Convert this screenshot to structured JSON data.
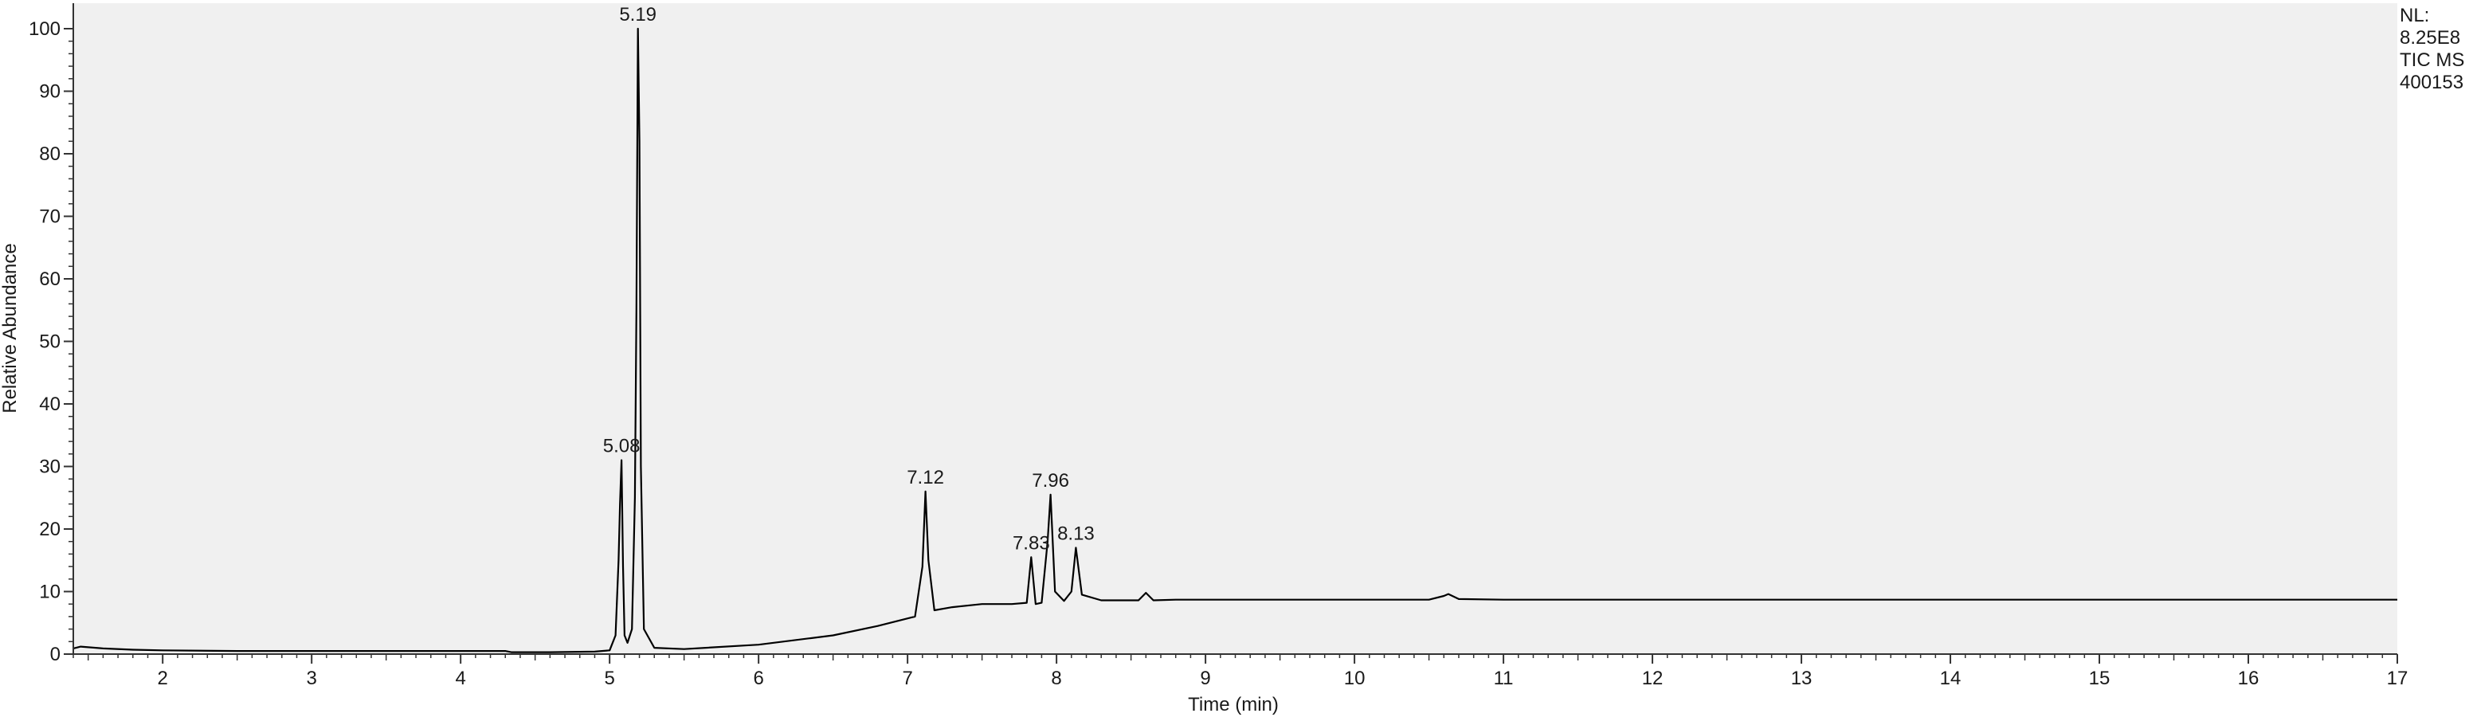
{
  "side_info": {
    "nl_label": "NL:",
    "nl_value": "8.25E8",
    "scan_filter": "TIC  MS",
    "sample_id": "400153"
  },
  "chart_data": {
    "type": "line",
    "title": "",
    "xlabel": "Time (min)",
    "ylabel": "Relative Abundance",
    "xlim": [
      1.4,
      17.0
    ],
    "ylim": [
      0,
      100
    ],
    "x_ticks": [
      2,
      3,
      4,
      5,
      6,
      7,
      8,
      9,
      10,
      11,
      12,
      13,
      14,
      15,
      16,
      17
    ],
    "y_ticks": [
      0,
      10,
      20,
      30,
      40,
      50,
      60,
      70,
      80,
      90,
      100
    ],
    "grid": false,
    "plot_background": "#f0f0f0",
    "line_color": "#000000",
    "series": [
      {
        "x": [
          1.4,
          1.45,
          1.6,
          1.8,
          2.0,
          2.5,
          3.0,
          3.5,
          4.0,
          4.3,
          4.34,
          4.6,
          4.9,
          5.0,
          5.04,
          5.06,
          5.07,
          5.08,
          5.09,
          5.1,
          5.12,
          5.15,
          5.17,
          5.18,
          5.19,
          5.2,
          5.21,
          5.23,
          5.3,
          5.5,
          6.0,
          6.5,
          6.8,
          7.05,
          7.1,
          7.12,
          7.14,
          7.18,
          7.3,
          7.5,
          7.7,
          7.8,
          7.83,
          7.86,
          7.9,
          7.94,
          7.96,
          7.99,
          8.05,
          8.1,
          8.13,
          8.17,
          8.3,
          8.55,
          8.6,
          8.65,
          8.8,
          9.5,
          10.5,
          10.6,
          10.63,
          10.7,
          11.0,
          12.0,
          13.0,
          14.0,
          15.0,
          16.0,
          17.0
        ],
        "y": [
          0.9,
          1.2,
          0.9,
          0.7,
          0.6,
          0.5,
          0.5,
          0.5,
          0.5,
          0.5,
          0.3,
          0.3,
          0.4,
          0.6,
          3.0,
          15.0,
          24.0,
          31.0,
          14.0,
          3.0,
          1.8,
          4.0,
          25.0,
          55.0,
          100.0,
          82.0,
          30.0,
          4.0,
          1.0,
          0.8,
          1.5,
          3.0,
          4.5,
          6.0,
          14.0,
          26.0,
          15.0,
          7.0,
          7.5,
          8.0,
          8.0,
          8.2,
          15.5,
          8.0,
          8.2,
          18.0,
          25.5,
          10.0,
          8.5,
          10.0,
          17.0,
          9.5,
          8.6,
          8.6,
          9.8,
          8.6,
          8.7,
          8.7,
          8.7,
          9.3,
          9.6,
          8.8,
          8.7,
          8.7,
          8.7,
          8.7,
          8.7,
          8.7,
          8.7
        ]
      }
    ],
    "peak_labels": [
      {
        "rt": 5.08,
        "label": "5.08",
        "value": 31
      },
      {
        "rt": 5.19,
        "label": "5.19",
        "value": 100
      },
      {
        "rt": 7.12,
        "label": "7.12",
        "value": 26
      },
      {
        "rt": 7.83,
        "label": "7.83",
        "value": 15.5
      },
      {
        "rt": 7.96,
        "label": "7.96",
        "value": 25.5
      },
      {
        "rt": 8.13,
        "label": "8.13",
        "value": 17
      }
    ]
  }
}
